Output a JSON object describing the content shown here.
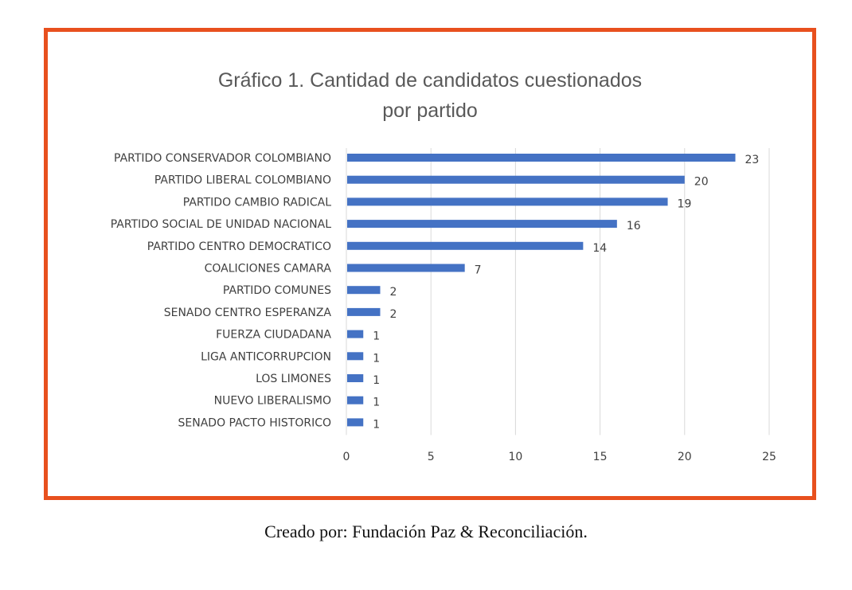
{
  "chart_data": {
    "type": "bar",
    "orientation": "horizontal",
    "title_line1": "Gráfico 1. Cantidad de candidatos cuestionados",
    "title_line2": "por partido",
    "categories": [
      "PARTIDO CONSERVADOR COLOMBIANO",
      "PARTIDO LIBERAL COLOMBIANO",
      "PARTIDO CAMBIO RADICAL",
      "PARTIDO SOCIAL DE UNIDAD NACIONAL",
      "PARTIDO CENTRO DEMOCRATICO",
      "COALICIONES CAMARA",
      "PARTIDO COMUNES",
      "SENADO CENTRO ESPERANZA",
      "FUERZA CIUDADANA",
      "LIGA ANTICORRUPCION",
      "LOS LIMONES",
      "NUEVO LIBERALISMO",
      "SENADO PACTO HISTORICO"
    ],
    "values": [
      23,
      20,
      19,
      16,
      14,
      7,
      2,
      2,
      1,
      1,
      1,
      1,
      1
    ],
    "xlim": [
      0,
      25
    ],
    "xticks": [
      0,
      5,
      10,
      15,
      20,
      25
    ],
    "grid": true,
    "bar_color": "#4472C4",
    "xlabel": "",
    "ylabel": ""
  },
  "caption": "Creado por: Fundación Paz & Reconciliación.",
  "frame_color": "#E8501E"
}
